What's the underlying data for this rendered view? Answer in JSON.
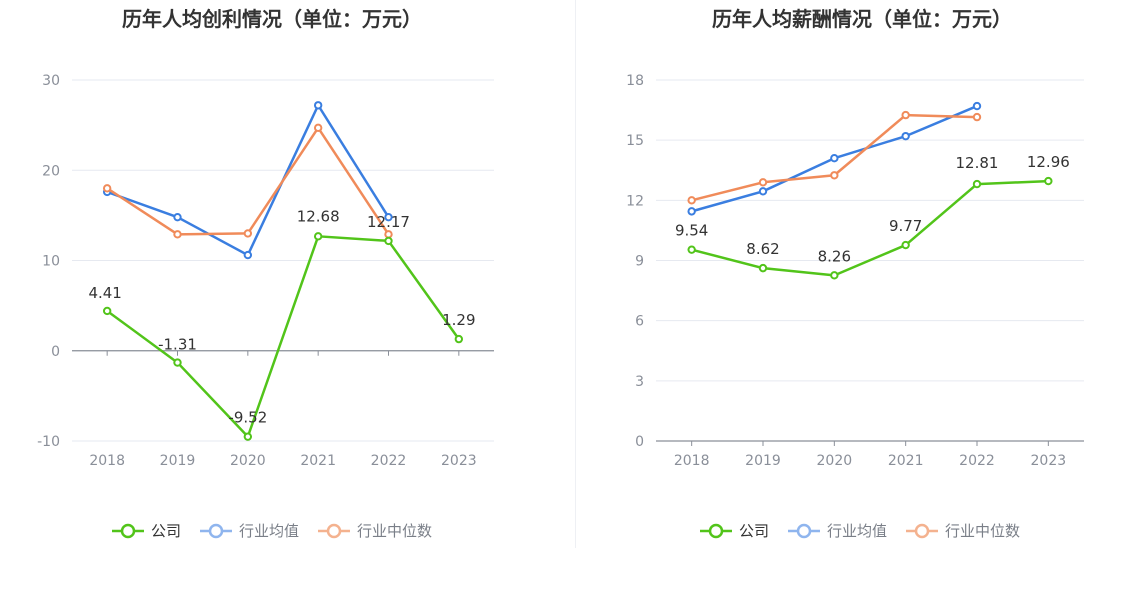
{
  "chart_data": [
    {
      "type": "line",
      "title": "历年人均创利情况（单位：万元）",
      "xlabel": "",
      "ylabel": "",
      "categories": [
        "2018",
        "2019",
        "2020",
        "2021",
        "2022",
        "2023"
      ],
      "ylim": [
        -10,
        30
      ],
      "yticks": [
        -10,
        0,
        10,
        20,
        30
      ],
      "ytick_labels": [
        "-10",
        "0",
        "10",
        "20",
        "30"
      ],
      "legend_position": "bottom-center",
      "series": [
        {
          "name": "公司",
          "color": "#52c41a",
          "values": [
            4.41,
            -1.31,
            -9.52,
            12.68,
            12.17,
            1.29
          ],
          "labels": [
            "4.41",
            "-1.31",
            "-9.52",
            "12.68",
            "12.17",
            "1.29"
          ]
        },
        {
          "name": "行业均值",
          "color": "#3a7ee0",
          "values": [
            17.6,
            14.8,
            10.6,
            27.2,
            14.8,
            null
          ]
        },
        {
          "name": "行业中位数",
          "color": "#f08b5a",
          "values": [
            18.0,
            12.9,
            13.0,
            24.7,
            12.9,
            null
          ]
        }
      ]
    },
    {
      "type": "line",
      "title": "历年人均薪酬情况（单位：万元）",
      "xlabel": "",
      "ylabel": "",
      "categories": [
        "2018",
        "2019",
        "2020",
        "2021",
        "2022",
        "2023"
      ],
      "ylim": [
        0,
        18
      ],
      "yticks": [
        0,
        3,
        6,
        9,
        12,
        15,
        18
      ],
      "ytick_labels": [
        "0",
        "3",
        "6",
        "9",
        "12",
        "15",
        "18"
      ],
      "legend_position": "bottom-center",
      "series": [
        {
          "name": "公司",
          "color": "#52c41a",
          "values": [
            9.54,
            8.62,
            8.26,
            9.77,
            12.81,
            12.96
          ],
          "labels": [
            "9.54",
            "8.62",
            "8.26",
            "9.77",
            "12.81",
            "12.96"
          ]
        },
        {
          "name": "行业均值",
          "color": "#3a7ee0",
          "values": [
            11.45,
            12.45,
            14.1,
            15.2,
            16.7,
            null
          ]
        },
        {
          "name": "行业中位数",
          "color": "#f08b5a",
          "values": [
            12.0,
            12.9,
            13.25,
            16.25,
            16.15,
            null
          ]
        }
      ]
    }
  ]
}
